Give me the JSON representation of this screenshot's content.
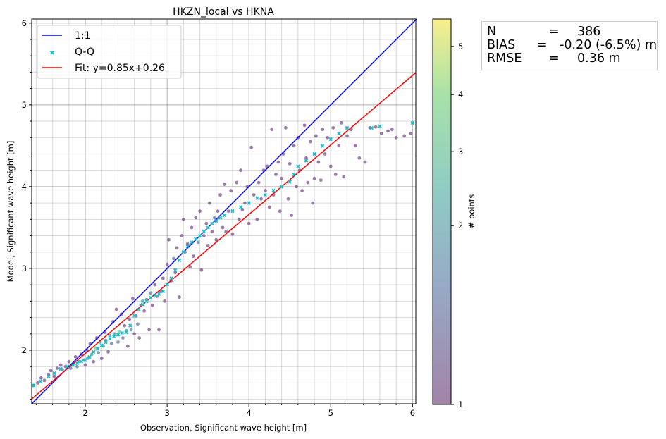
{
  "chart_data": {
    "type": "scatter",
    "title": "HKZN_local vs HKNA",
    "xlabel": "Observation, Significant wave height [m]",
    "ylabel": "Model, Significant wave height [m]",
    "xlim": [
      1.345,
      6.04
    ],
    "ylim": [
      1.345,
      6.05
    ],
    "xticks": [
      "2",
      "3",
      "4",
      "5",
      "6"
    ],
    "yticks": [
      "2",
      "3",
      "4",
      "5",
      "6"
    ],
    "grid": true,
    "colorbar": {
      "label": "# points",
      "ticks": [
        "1",
        "2",
        "3",
        "4",
        "5"
      ],
      "range": [
        1,
        5.6
      ]
    },
    "legend": {
      "placement": "top-left",
      "entries": [
        "1:1",
        "Q-Q",
        "Fit: y=0.85x+0.26"
      ]
    },
    "colors": {
      "one_to_one": "#0000ff",
      "fit": "#ff0000",
      "qq": "#17becf"
    },
    "fit": {
      "slope": 0.85,
      "intercept": 0.26
    },
    "stats": [
      {
        "key": "N",
        "value": "386"
      },
      {
        "key": "BIAS",
        "value": "-0.20 (-6.5%) m"
      },
      {
        "key": "RMSE",
        "value": "0.36 m"
      }
    ],
    "points": [
      [
        1.37,
        1.57,
        1
      ],
      [
        1.42,
        1.6,
        1
      ],
      [
        1.46,
        1.66,
        1
      ],
      [
        1.5,
        1.63,
        1
      ],
      [
        1.55,
        1.7,
        1
      ],
      [
        1.58,
        1.75,
        1
      ],
      [
        1.62,
        1.68,
        1
      ],
      [
        1.66,
        1.78,
        1
      ],
      [
        1.7,
        1.82,
        1
      ],
      [
        1.72,
        1.76,
        2
      ],
      [
        1.76,
        1.8,
        1
      ],
      [
        1.8,
        1.86,
        1
      ],
      [
        1.82,
        1.78,
        2
      ],
      [
        1.85,
        1.83,
        3
      ],
      [
        1.88,
        1.92,
        1
      ],
      [
        1.9,
        1.8,
        2
      ],
      [
        1.92,
        1.86,
        3
      ],
      [
        1.95,
        1.95,
        1
      ],
      [
        1.98,
        1.88,
        2
      ],
      [
        2.0,
        1.82,
        1
      ],
      [
        2.02,
        2.0,
        2
      ],
      [
        2.03,
        1.9,
        3
      ],
      [
        2.06,
        2.08,
        1
      ],
      [
        2.08,
        1.95,
        3
      ],
      [
        2.1,
        1.86,
        1
      ],
      [
        2.12,
        2.03,
        4
      ],
      [
        2.14,
        2.15,
        1
      ],
      [
        2.16,
        1.97,
        2
      ],
      [
        2.18,
        2.1,
        3
      ],
      [
        2.2,
        1.9,
        1
      ],
      [
        2.22,
        2.05,
        3
      ],
      [
        2.24,
        2.22,
        1
      ],
      [
        2.25,
        2.12,
        2
      ],
      [
        2.28,
        1.98,
        1
      ],
      [
        2.3,
        2.18,
        3
      ],
      [
        2.32,
        2.08,
        2
      ],
      [
        2.34,
        2.35,
        1
      ],
      [
        2.36,
        2.2,
        3
      ],
      [
        2.38,
        2.5,
        1
      ],
      [
        2.4,
        2.1,
        2
      ],
      [
        2.42,
        2.23,
        4
      ],
      [
        2.44,
        2.44,
        1
      ],
      [
        2.46,
        2.15,
        2
      ],
      [
        2.48,
        2.3,
        1
      ],
      [
        2.5,
        2.24,
        3
      ],
      [
        2.52,
        2.05,
        1
      ],
      [
        2.54,
        2.38,
        1
      ],
      [
        2.56,
        2.25,
        2
      ],
      [
        2.58,
        2.63,
        1
      ],
      [
        2.6,
        2.2,
        1
      ],
      [
        2.62,
        2.42,
        1
      ],
      [
        2.64,
        2.32,
        2
      ],
      [
        2.66,
        2.15,
        1
      ],
      [
        2.68,
        2.55,
        1
      ],
      [
        2.7,
        2.6,
        3
      ],
      [
        2.72,
        2.48,
        1
      ],
      [
        2.75,
        2.62,
        2
      ],
      [
        2.78,
        2.25,
        1
      ],
      [
        2.8,
        2.7,
        2
      ],
      [
        2.82,
        2.55,
        1
      ],
      [
        2.85,
        2.8,
        1
      ],
      [
        2.88,
        2.66,
        2
      ],
      [
        2.9,
        2.25,
        1
      ],
      [
        2.92,
        2.72,
        1
      ],
      [
        2.95,
        2.88,
        1
      ],
      [
        2.97,
        2.6,
        1
      ],
      [
        3.0,
        3.05,
        1
      ],
      [
        3.02,
        3.35,
        1
      ],
      [
        3.05,
        2.85,
        1
      ],
      [
        3.08,
        3.12,
        2
      ],
      [
        3.1,
        2.95,
        1
      ],
      [
        3.12,
        3.25,
        1
      ],
      [
        3.15,
        2.65,
        1
      ],
      [
        3.18,
        3.4,
        1
      ],
      [
        3.2,
        3.6,
        1
      ],
      [
        3.22,
        3.2,
        2
      ],
      [
        3.25,
        3.3,
        1
      ],
      [
        3.28,
        3.02,
        1
      ],
      [
        3.3,
        3.5,
        1
      ],
      [
        3.32,
        3.15,
        1
      ],
      [
        3.35,
        3.62,
        1
      ],
      [
        3.38,
        3.32,
        2
      ],
      [
        3.4,
        3.7,
        1
      ],
      [
        3.42,
        2.98,
        1
      ],
      [
        3.45,
        3.4,
        1
      ],
      [
        3.48,
        3.55,
        1
      ],
      [
        3.5,
        3.28,
        1
      ],
      [
        3.52,
        3.8,
        1
      ],
      [
        3.55,
        3.45,
        1
      ],
      [
        3.58,
        3.62,
        2
      ],
      [
        3.6,
        3.35,
        1
      ],
      [
        3.62,
        3.7,
        1
      ],
      [
        3.65,
        3.9,
        1
      ],
      [
        3.68,
        3.5,
        1
      ],
      [
        3.7,
        4.03,
        1
      ],
      [
        3.72,
        3.45,
        1
      ],
      [
        3.75,
        3.7,
        1
      ],
      [
        3.78,
        3.95,
        1
      ],
      [
        3.8,
        3.42,
        1
      ],
      [
        3.85,
        4.05,
        1
      ],
      [
        3.88,
        3.6,
        1
      ],
      [
        3.9,
        4.2,
        1
      ],
      [
        3.92,
        3.72,
        1
      ],
      [
        3.95,
        3.8,
        1
      ],
      [
        3.98,
        4.0,
        1
      ],
      [
        4.0,
        3.55,
        1
      ],
      [
        4.03,
        4.48,
        1
      ],
      [
        4.06,
        3.9,
        1
      ],
      [
        4.1,
        3.6,
        1
      ],
      [
        4.12,
        4.05,
        1
      ],
      [
        4.15,
        3.85,
        1
      ],
      [
        4.18,
        4.2,
        1
      ],
      [
        4.2,
        3.95,
        1
      ],
      [
        4.22,
        4.25,
        1
      ],
      [
        4.25,
        3.75,
        1
      ],
      [
        4.28,
        4.7,
        1
      ],
      [
        4.3,
        3.9,
        1
      ],
      [
        4.33,
        4.15,
        1
      ],
      [
        4.36,
        4.3,
        1
      ],
      [
        4.38,
        3.7,
        1
      ],
      [
        4.4,
        4.1,
        1
      ],
      [
        4.42,
        4.4,
        1
      ],
      [
        4.45,
        4.72,
        1
      ],
      [
        4.48,
        3.85,
        1
      ],
      [
        4.5,
        4.28,
        1
      ],
      [
        4.52,
        3.65,
        1
      ],
      [
        4.55,
        4.5,
        1
      ],
      [
        4.58,
        4.0,
        1
      ],
      [
        4.6,
        4.6,
        1
      ],
      [
        4.62,
        4.2,
        1
      ],
      [
        4.65,
        3.95,
        1
      ],
      [
        4.68,
        4.75,
        1
      ],
      [
        4.7,
        4.35,
        1
      ],
      [
        4.72,
        4.05,
        1
      ],
      [
        4.75,
        4.55,
        1
      ],
      [
        4.78,
        3.8,
        1
      ],
      [
        4.8,
        4.1,
        1
      ],
      [
        4.82,
        4.62,
        1
      ],
      [
        4.85,
        4.3,
        1
      ],
      [
        4.88,
        4.08,
        1
      ],
      [
        4.9,
        4.7,
        1
      ],
      [
        4.93,
        4.4,
        1
      ],
      [
        4.96,
        4.6,
        1
      ],
      [
        5.0,
        4.25,
        1
      ],
      [
        5.03,
        4.72,
        1
      ],
      [
        5.06,
        4.15,
        1
      ],
      [
        5.1,
        4.5,
        1
      ],
      [
        5.13,
        4.78,
        1
      ],
      [
        5.16,
        4.12,
        1
      ],
      [
        5.2,
        4.62,
        1
      ],
      [
        5.25,
        4.7,
        1
      ],
      [
        5.3,
        4.5,
        1
      ],
      [
        5.35,
        4.35,
        1
      ],
      [
        5.42,
        4.3,
        1
      ],
      [
        5.48,
        4.72,
        1
      ],
      [
        5.55,
        4.73,
        1
      ],
      [
        5.62,
        4.65,
        1
      ],
      [
        5.7,
        4.68,
        1
      ],
      [
        5.75,
        4.7,
        1
      ],
      [
        5.8,
        4.6,
        1
      ],
      [
        5.9,
        4.62,
        1
      ],
      [
        5.98,
        4.65,
        1
      ]
    ],
    "qq": [
      [
        1.37,
        1.57
      ],
      [
        1.45,
        1.62
      ],
      [
        1.55,
        1.68
      ],
      [
        1.62,
        1.72
      ],
      [
        1.7,
        1.77
      ],
      [
        1.78,
        1.8
      ],
      [
        1.85,
        1.82
      ],
      [
        1.9,
        1.84
      ],
      [
        1.95,
        1.86
      ],
      [
        2.0,
        1.88
      ],
      [
        2.05,
        1.92
      ],
      [
        2.1,
        1.98
      ],
      [
        2.15,
        2.02
      ],
      [
        2.2,
        2.06
      ],
      [
        2.25,
        2.1
      ],
      [
        2.3,
        2.14
      ],
      [
        2.35,
        2.17
      ],
      [
        2.4,
        2.19
      ],
      [
        2.45,
        2.21
      ],
      [
        2.5,
        2.22
      ],
      [
        2.55,
        2.3
      ],
      [
        2.6,
        2.42
      ],
      [
        2.65,
        2.5
      ],
      [
        2.7,
        2.56
      ],
      [
        2.75,
        2.6
      ],
      [
        2.8,
        2.64
      ],
      [
        2.85,
        2.67
      ],
      [
        2.9,
        2.69
      ],
      [
        2.95,
        2.72
      ],
      [
        3.0,
        2.8
      ],
      [
        3.05,
        2.88
      ],
      [
        3.1,
        2.98
      ],
      [
        3.15,
        3.1
      ],
      [
        3.2,
        3.2
      ],
      [
        3.25,
        3.27
      ],
      [
        3.3,
        3.32
      ],
      [
        3.35,
        3.36
      ],
      [
        3.4,
        3.4
      ],
      [
        3.45,
        3.45
      ],
      [
        3.5,
        3.5
      ],
      [
        3.55,
        3.55
      ],
      [
        3.6,
        3.58
      ],
      [
        3.65,
        3.62
      ],
      [
        3.7,
        3.65
      ],
      [
        3.8,
        3.7
      ],
      [
        3.9,
        3.75
      ],
      [
        4.0,
        3.8
      ],
      [
        4.1,
        3.86
      ],
      [
        4.2,
        3.9
      ],
      [
        4.3,
        3.95
      ],
      [
        4.4,
        4.0
      ],
      [
        4.5,
        4.06
      ],
      [
        4.55,
        4.15
      ],
      [
        4.6,
        4.25
      ],
      [
        4.7,
        4.32
      ],
      [
        4.8,
        4.4
      ],
      [
        4.9,
        4.5
      ],
      [
        5.0,
        4.58
      ],
      [
        5.1,
        4.65
      ],
      [
        5.2,
        4.72
      ],
      [
        5.5,
        4.72
      ],
      [
        5.6,
        4.74
      ],
      [
        6.0,
        4.78
      ]
    ]
  }
}
